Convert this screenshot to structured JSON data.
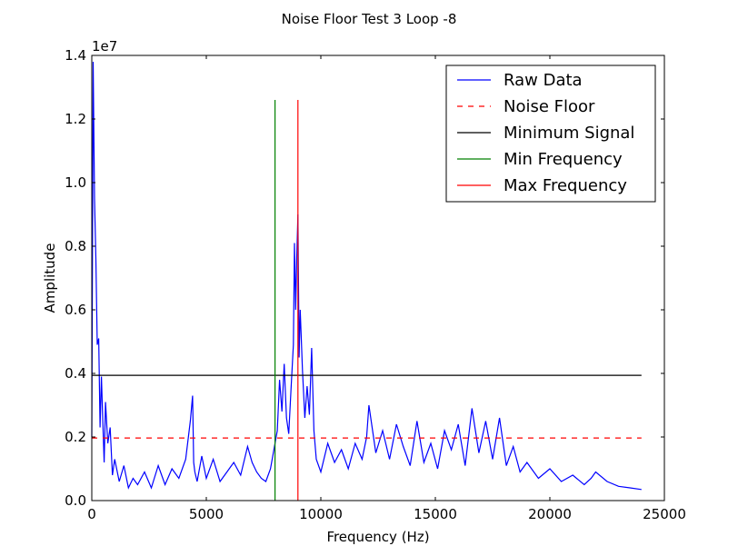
{
  "chart_data": {
    "type": "line",
    "title": "Noise Floor Test 3 Loop -8",
    "xlabel": "Frequency (Hz)",
    "ylabel": "Amplitude",
    "y_offset_label": "1e7",
    "xlim": [
      0,
      25000
    ],
    "ylim": [
      0,
      14000000
    ],
    "x_ticks": [
      0,
      5000,
      10000,
      15000,
      20000,
      25000
    ],
    "x_tick_labels": [
      "0",
      "5000",
      "10000",
      "15000",
      "20000",
      "25000"
    ],
    "y_ticks": [
      0,
      2000000,
      4000000,
      6000000,
      8000000,
      10000000,
      12000000,
      14000000
    ],
    "y_tick_labels": [
      "0.0",
      "0.2",
      "0.4",
      "0.6",
      "0.8",
      "1.0",
      "1.2",
      "1.4"
    ],
    "grid": false,
    "legend_position": "top-right",
    "legend": [
      {
        "label": "Raw Data",
        "color": "#0000ff",
        "style": "solid"
      },
      {
        "label": "Noise Floor",
        "color": "#ff0000",
        "style": "dashed"
      },
      {
        "label": "Minimum Signal",
        "color": "#000000",
        "style": "solid"
      },
      {
        "label": "Min Frequency",
        "color": "#008000",
        "style": "solid"
      },
      {
        "label": "Max Frequency",
        "color": "#ff0000",
        "style": "solid"
      }
    ],
    "series": [
      {
        "name": "Raw Data",
        "color": "#0000ff",
        "x": [
          0,
          60,
          120,
          180,
          240,
          300,
          360,
          420,
          480,
          540,
          600,
          700,
          800,
          900,
          1000,
          1200,
          1400,
          1600,
          1800,
          2000,
          2300,
          2600,
          2900,
          3200,
          3500,
          3800,
          4100,
          4300,
          4400,
          4450,
          4500,
          4600,
          4800,
          5000,
          5300,
          5600,
          5900,
          6200,
          6500,
          6800,
          7000,
          7200,
          7400,
          7600,
          7800,
          8000,
          8100,
          8200,
          8300,
          8400,
          8500,
          8600,
          8700,
          8800,
          8850,
          8900,
          8950,
          9000,
          9050,
          9100,
          9200,
          9300,
          9400,
          9500,
          9600,
          9700,
          9800,
          10000,
          10300,
          10600,
          10900,
          11200,
          11500,
          11800,
          12000,
          12100,
          12400,
          12700,
          13000,
          13300,
          13600,
          13900,
          14200,
          14500,
          14800,
          15100,
          15400,
          15700,
          16000,
          16300,
          16600,
          16900,
          17200,
          17500,
          17800,
          18100,
          18400,
          18700,
          19000,
          19500,
          20000,
          20500,
          21000,
          21500,
          21800,
          22000,
          22500,
          23000,
          23500,
          24000
        ],
        "y": [
          2000000,
          13800000,
          9500000,
          7600000,
          4900000,
          5100000,
          2300000,
          3900000,
          2500000,
          1200000,
          3100000,
          1800000,
          2300000,
          800000,
          1300000,
          600000,
          1100000,
          400000,
          700000,
          500000,
          900000,
          400000,
          1100000,
          500000,
          1000000,
          700000,
          1300000,
          2500000,
          3300000,
          1200000,
          900000,
          600000,
          1400000,
          700000,
          1300000,
          600000,
          900000,
          1200000,
          800000,
          1700000,
          1200000,
          900000,
          700000,
          600000,
          1000000,
          1800000,
          2200000,
          3800000,
          2800000,
          4300000,
          2600000,
          2100000,
          3500000,
          4900000,
          8100000,
          6000000,
          7600000,
          9000000,
          4500000,
          6000000,
          4100000,
          2600000,
          3600000,
          2700000,
          4800000,
          2200000,
          1300000,
          900000,
          1800000,
          1200000,
          1600000,
          1000000,
          1800000,
          1300000,
          2000000,
          3000000,
          1500000,
          2200000,
          1300000,
          2400000,
          1700000,
          1100000,
          2500000,
          1200000,
          1800000,
          1000000,
          2200000,
          1600000,
          2400000,
          1100000,
          2900000,
          1500000,
          2500000,
          1300000,
          2600000,
          1100000,
          1700000,
          900000,
          1200000,
          700000,
          1000000,
          600000,
          800000,
          500000,
          700000,
          900000,
          600000,
          450000,
          400000,
          350000
        ]
      },
      {
        "name": "Noise Floor",
        "color": "#ff0000",
        "x": [
          0,
          24000
        ],
        "y": [
          1970000,
          1970000
        ]
      },
      {
        "name": "Minimum Signal",
        "color": "#000000",
        "x": [
          0,
          24000
        ],
        "y": [
          3940000,
          3940000
        ]
      },
      {
        "name": "Min Frequency",
        "color": "#008000",
        "x": [
          8000,
          8000
        ],
        "y": [
          0,
          12600000
        ]
      },
      {
        "name": "Max Frequency",
        "color": "#ff0000",
        "x": [
          9000,
          9000
        ],
        "y": [
          0,
          12600000
        ]
      }
    ]
  }
}
